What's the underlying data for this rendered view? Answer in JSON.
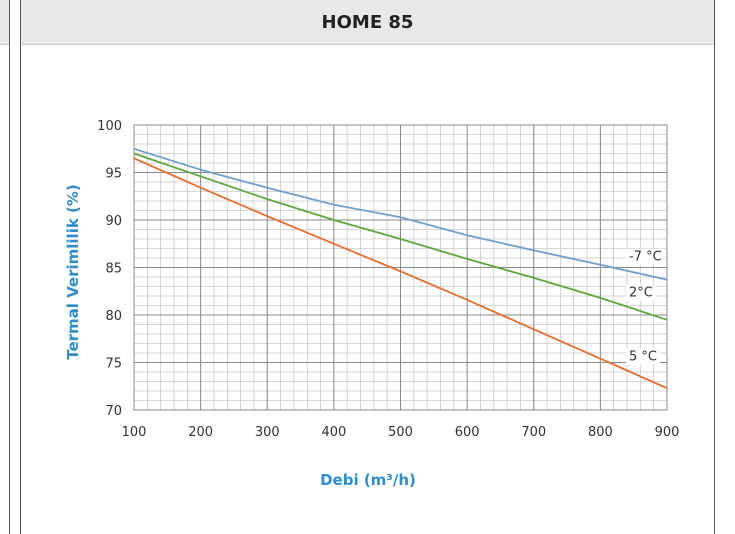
{
  "panel": {
    "title": "HOME 85"
  },
  "chart_data": {
    "type": "line",
    "title": "HOME 85",
    "xlabel": "Debi (m³/h)",
    "ylabel": "Termal Verimlilik (%)",
    "xlim": [
      100,
      900
    ],
    "ylim": [
      70,
      100
    ],
    "x_ticks": [
      "100",
      "200",
      "300",
      "400",
      "500",
      "600",
      "700",
      "800",
      "900"
    ],
    "y_ticks": [
      "70",
      "75",
      "80",
      "85",
      "90",
      "95",
      "100"
    ],
    "grid": true,
    "series": [
      {
        "name": "-7 °C",
        "color": "#6e9fd4",
        "points": [
          [
            100,
            97.5
          ],
          [
            200,
            95.3
          ],
          [
            300,
            93.4
          ],
          [
            400,
            91.6
          ],
          [
            500,
            90.3
          ],
          [
            600,
            88.4
          ],
          [
            700,
            86.8
          ],
          [
            800,
            85.3
          ],
          [
            900,
            83.7
          ]
        ]
      },
      {
        "name": "2°C",
        "color": "#5aaa3a",
        "points": [
          [
            100,
            97.0
          ],
          [
            200,
            94.6
          ],
          [
            300,
            92.2
          ],
          [
            400,
            90.0
          ],
          [
            500,
            88.0
          ],
          [
            600,
            85.9
          ],
          [
            700,
            83.9
          ],
          [
            800,
            81.8
          ],
          [
            900,
            79.5
          ]
        ]
      },
      {
        "name": "5 °C",
        "color": "#ee6a2a",
        "points": [
          [
            100,
            96.5
          ],
          [
            200,
            93.4
          ],
          [
            300,
            90.4
          ],
          [
            400,
            87.5
          ],
          [
            500,
            84.6
          ],
          [
            600,
            81.6
          ],
          [
            700,
            78.5
          ],
          [
            800,
            75.4
          ],
          [
            900,
            72.3
          ]
        ]
      }
    ]
  }
}
